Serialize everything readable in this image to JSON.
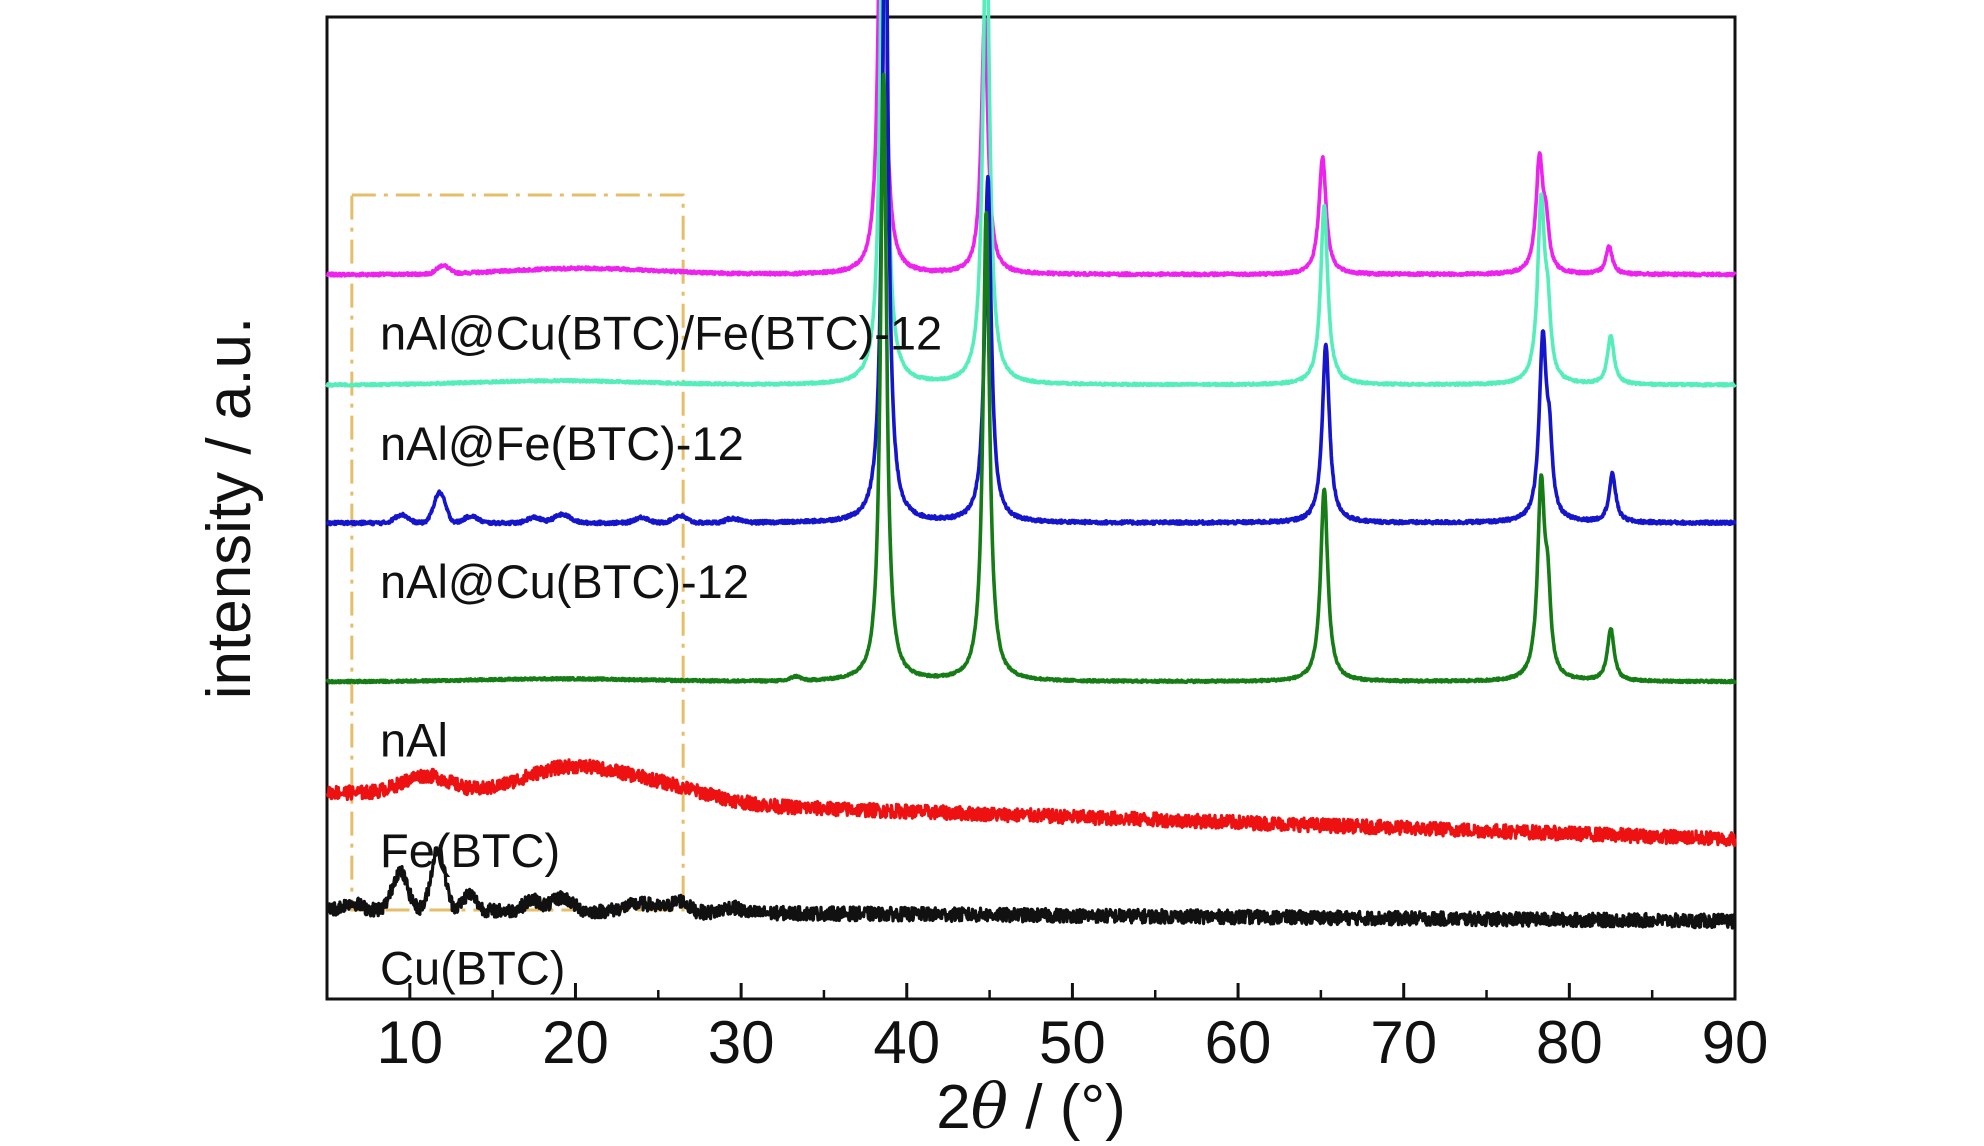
{
  "chart_data": {
    "type": "line",
    "xlabel_prefix": "2",
    "xlabel_symbol": "θ",
    "xlabel_suffix": " / (°)",
    "ylabel": "intensity / a.u.",
    "xlim": [
      5,
      90
    ],
    "x_ticks": [
      10,
      20,
      30,
      40,
      50,
      60,
      70,
      80,
      90
    ],
    "grid": false,
    "highlight_box": {
      "x_range": [
        6.5,
        26.5
      ],
      "color": "#E6BE6A"
    },
    "series": [
      {
        "name": "nAl@Cu(BTC)/Fe(BTC)-12",
        "color": "#EE22EE",
        "baseline": 0.8,
        "drift": 0.0,
        "noise": 0.01,
        "bumps": [
          [
            12,
            0.06,
            0.35
          ],
          [
            19,
            0.03,
            4
          ],
          [
            23,
            0.02,
            4
          ]
        ],
        "peaks": [
          [
            38.5,
            3.85,
            0.22
          ],
          [
            44.7,
            1.85,
            0.24
          ],
          [
            65.1,
            0.85,
            0.26
          ],
          [
            78.2,
            0.82,
            0.26
          ],
          [
            78.6,
            0.28,
            0.2
          ],
          [
            82.4,
            0.2,
            0.24
          ]
        ]
      },
      {
        "name": "nAl@Fe(BTC)-12",
        "color": "#55EEBB",
        "baseline": 0.0,
        "drift": 0.0,
        "noise": 0.008,
        "bumps": [
          [
            19,
            0.03,
            5
          ]
        ],
        "peaks": [
          [
            38.6,
            4.5,
            0.22
          ],
          [
            44.8,
            3.5,
            0.24
          ],
          [
            65.2,
            1.3,
            0.26
          ],
          [
            78.3,
            1.3,
            0.26
          ],
          [
            78.7,
            0.4,
            0.2
          ],
          [
            82.5,
            0.35,
            0.24
          ]
        ]
      },
      {
        "name": "nAl@Cu(BTC)-12",
        "color": "#1515CC",
        "baseline": -1.0,
        "drift": 0.0,
        "noise": 0.012,
        "bumps": [
          [
            9.5,
            0.06,
            0.4
          ],
          [
            11.8,
            0.22,
            0.35
          ],
          [
            13.7,
            0.05,
            0.4
          ],
          [
            17.5,
            0.04,
            0.4
          ],
          [
            19.2,
            0.06,
            0.5
          ],
          [
            24,
            0.04,
            0.4
          ],
          [
            26.3,
            0.05,
            0.4
          ],
          [
            29.5,
            0.03,
            0.4
          ]
        ],
        "peaks": [
          [
            38.7,
            4.8,
            0.22
          ],
          [
            44.9,
            2.5,
            0.24
          ],
          [
            65.3,
            1.3,
            0.26
          ],
          [
            78.4,
            1.3,
            0.26
          ],
          [
            78.8,
            0.45,
            0.2
          ],
          [
            82.6,
            0.35,
            0.24
          ]
        ]
      },
      {
        "name": "nAl",
        "color": "#167D16",
        "baseline": -2.15,
        "drift": 0.0,
        "noise": 0.008,
        "bumps": [
          [
            19,
            0.02,
            5
          ],
          [
            33.3,
            0.03,
            0.3
          ]
        ],
        "peaks": [
          [
            38.6,
            4.4,
            0.22
          ],
          [
            44.8,
            3.4,
            0.24
          ],
          [
            65.2,
            1.4,
            0.26
          ],
          [
            78.3,
            1.4,
            0.26
          ],
          [
            78.7,
            0.5,
            0.2
          ],
          [
            82.5,
            0.38,
            0.24
          ]
        ]
      },
      {
        "name": "Fe(BTC)",
        "color": "#EE1111",
        "baseline": -2.95,
        "drift": -0.004,
        "noise": 0.05,
        "bumps": [
          [
            11,
            0.14,
            1.5
          ],
          [
            19.5,
            0.22,
            3
          ],
          [
            25,
            0.12,
            3
          ]
        ],
        "peaks": []
      },
      {
        "name": "Cu(BTC)",
        "color": "#111111",
        "baseline": -3.8,
        "drift": -0.001,
        "noise": 0.05,
        "bumps": [
          [
            6.5,
            0.05,
            0.5
          ],
          [
            9.4,
            0.28,
            0.45
          ],
          [
            11.7,
            0.45,
            0.4
          ],
          [
            13.6,
            0.12,
            0.4
          ],
          [
            17.4,
            0.08,
            0.5
          ],
          [
            19.2,
            0.1,
            0.6
          ],
          [
            24,
            0.06,
            1
          ],
          [
            26.3,
            0.08,
            0.5
          ],
          [
            29.4,
            0.04,
            0.5
          ]
        ],
        "peaks": []
      }
    ]
  }
}
